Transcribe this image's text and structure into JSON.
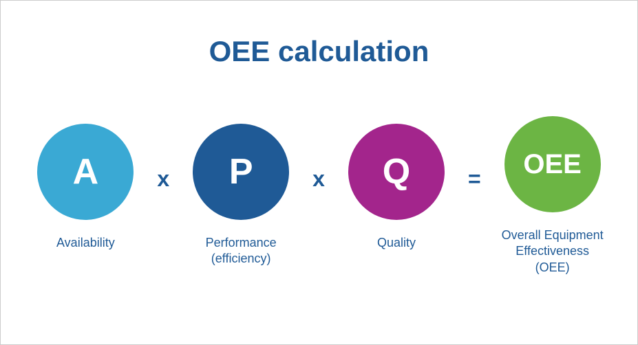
{
  "title": {
    "text": "OEE calculation",
    "color": "#1f5a96",
    "fontsize": 42
  },
  "operators": {
    "multiply": "x",
    "equals": "=",
    "color": "#1f5a96",
    "fontsize": 32
  },
  "caption_color": "#1f5a96",
  "circle_diameter": 140,
  "terms": [
    {
      "letter": "A",
      "caption": "Availability",
      "bg_color": "#3aa9d4",
      "text_color": "#ffffff",
      "letter_fontsize": 52
    },
    {
      "letter": "P",
      "caption": "Performance (efficiency)",
      "bg_color": "#1f5a96",
      "text_color": "#ffffff",
      "letter_fontsize": 52
    },
    {
      "letter": "Q",
      "caption": "Quality",
      "bg_color": "#a3258c",
      "text_color": "#ffffff",
      "letter_fontsize": 52
    }
  ],
  "result": {
    "letter": "OEE",
    "caption": "Overall Equipment Effectiveness (OEE)",
    "bg_color": "#6cb544",
    "text_color": "#ffffff",
    "letter_fontsize": 40
  },
  "background_color": "#ffffff"
}
